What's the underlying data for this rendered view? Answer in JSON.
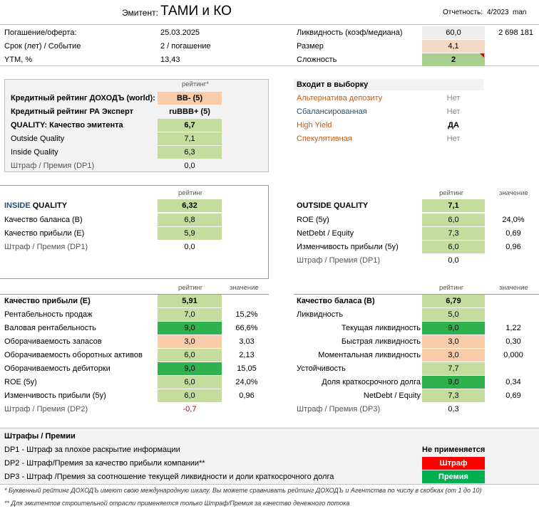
{
  "header": {
    "issuer_label": "Эмитент:",
    "issuer_name": "ТАМИ и КО",
    "report_label": "Отчетность:",
    "report_period": "4/2023",
    "report_suffix": "man"
  },
  "top": {
    "rows": [
      {
        "label": "Погашение/оферта:",
        "value": "25.03.2025"
      },
      {
        "label": "Срок (лет) / Событие",
        "value": "2 / погашение"
      },
      {
        "label": "YTM, %",
        "value": "13,43"
      }
    ],
    "right": [
      {
        "label": "Ликвидность (коэф/медиана)",
        "value": "60,0",
        "extra": "2 698 181"
      },
      {
        "label": "Размер",
        "value": "4,1",
        "extra": ""
      },
      {
        "label": "Сложность",
        "value": "2",
        "extra": ""
      }
    ]
  },
  "ratings": {
    "col_header": "рейтинг*",
    "rows": [
      {
        "label": "Кредитный рейтинг ДОХОДЪ (world):",
        "value": "BB- (5)"
      },
      {
        "label": "Кредитный рейтинг РА Эксперт",
        "value": "ruBBB+ (5)"
      },
      {
        "label": "QUALITY: Качество эмитента",
        "value": "6,7"
      },
      {
        "label": "Outside Quality",
        "value": "7,1"
      },
      {
        "label": "Inside Quality",
        "value": "6,3"
      },
      {
        "label": "Штраф / Премия (DP1)",
        "value": "0,0"
      }
    ]
  },
  "selection": {
    "title": "Входит в выборку",
    "rows": [
      {
        "label": "Альтернатива депозиту",
        "value": "Нет"
      },
      {
        "label": "Сбалансированная",
        "value": "Нет"
      },
      {
        "label": "High Yield",
        "value": "ДА"
      },
      {
        "label": "Спекулятивная",
        "value": "Нет"
      }
    ]
  },
  "inside": {
    "col_header": "рейтинг",
    "title_a": "INSIDE",
    "title_b": "QUALITY",
    "value": "6,32",
    "rows": [
      {
        "label": "Качество баланса (B)",
        "value": "6,8"
      },
      {
        "label": "Качество прибыли (E)",
        "value": "5,9"
      },
      {
        "label": "Штраф / Премия (DP1)",
        "value": "0,0"
      }
    ]
  },
  "outside": {
    "col_header": "рейтинг",
    "col_header2": "значение",
    "title_a": "OUTSIDE",
    "title_b": "QUALITY",
    "value": "7,1",
    "rows": [
      {
        "label": "ROE (5y)",
        "value": "6,0",
        "extra": "24,0%"
      },
      {
        "label": "NetDebt / Equity",
        "value": "7,3",
        "extra": "0,69"
      },
      {
        "label": "Изменчивость прибыли (5y)",
        "value": "6,0",
        "extra": "0,96"
      },
      {
        "label": "Штраф / Премия (DP1)",
        "value": "0,0",
        "extra": ""
      }
    ]
  },
  "earnings": {
    "col_header": "рейтинг",
    "col_header2": "значение",
    "title": "Качество прибыли (E)",
    "value": "5,91",
    "rows": [
      {
        "label": "Рентабельность продаж",
        "value": "7,0",
        "extra": "15,2%"
      },
      {
        "label": "Валовая рентабельность",
        "value": "9,0",
        "extra": "66,6%"
      },
      {
        "label": "Оборачиваемость запасов",
        "value": "3,0",
        "extra": "3,03"
      },
      {
        "label": "Оборачиваемость оборотных активов",
        "value": "6,0",
        "extra": "2,13"
      },
      {
        "label": "Оборачиваемость дебиторки",
        "value": "9,0",
        "extra": "15,05"
      },
      {
        "label": "ROE (5y)",
        "value": "6,0",
        "extra": "24,0%"
      },
      {
        "label": "Изменчивость прибыли (5y)",
        "value": "6,0",
        "extra": "0,96"
      },
      {
        "label": "Штраф / Премия (DP2)",
        "value": "-0,7",
        "extra": ""
      }
    ]
  },
  "balance": {
    "col_header": "рейтинг",
    "col_header2": "значение",
    "title": "Качество баласа (B)",
    "value": "6,79",
    "rows": [
      {
        "label": "Ликвидность",
        "value": "5,0",
        "extra": ""
      },
      {
        "label": "Текущая ликвидность",
        "value": "9,0",
        "extra": "1,22"
      },
      {
        "label": "Быстрая ликвидность",
        "value": "3,0",
        "extra": "0,30"
      },
      {
        "label": "Моментальная ликвидность",
        "value": "3,0",
        "extra": "0,000"
      },
      {
        "label": "Устойчивость",
        "value": "7,7",
        "extra": ""
      },
      {
        "label": "Доля краткосрочного долга",
        "value": "9,0",
        "extra": "0,34"
      },
      {
        "label": "NetDebt / Equity",
        "value": "7,3",
        "extra": "0,69"
      },
      {
        "label": "Штраф / Премия (DP3)",
        "value": "0,3",
        "extra": ""
      }
    ]
  },
  "penalties": {
    "title": "Штрафы / Премии",
    "rows": [
      {
        "label": "DP1 - Штраф за плохое раскрытие информации",
        "value": "Не применяется"
      },
      {
        "label": "DP2 - Штраф/Премия за качество прибыли компании**",
        "value": "Штраф"
      },
      {
        "label": "DP3 - Штраф /Премия за соотношение текущей ликвидности и доли краткосрочного долга",
        "value": "Премия"
      }
    ]
  },
  "footnotes": [
    "* Буквенный рейтинг ДОХОДЪ имеют свою международную шкалу. Вы можете сравнивать рейтинг ДОХОДЪ и Агентства по числу в скобках (от 1 до 10)",
    "** Для эмитентов строительной отрасли применяется только Штраф/Премия за качество денежного потока"
  ]
}
